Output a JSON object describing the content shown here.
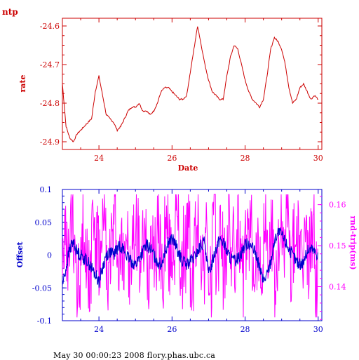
{
  "footer_text": "May 30 00:00:23 2008 flory.phas.ubc.ca",
  "colors": {
    "top": "#cc0000",
    "offset": "#0000cc",
    "roundtrip": "#ff00ff"
  },
  "chart_data": [
    {
      "type": "line",
      "title": "ntp",
      "xlabel": "Date",
      "ylabel": "rate",
      "xlim": [
        23,
        30.1
      ],
      "ylim": [
        -24.92,
        -24.58
      ],
      "xticks": [
        24,
        26,
        28,
        30
      ],
      "xtick_labels": [
        "24",
        "26",
        "28",
        "30"
      ],
      "yticks": [
        -24.6,
        -24.7,
        -24.8,
        -24.9
      ],
      "ytick_labels": [
        "-24.6",
        "-24.7",
        "-24.8",
        "-24.9"
      ],
      "grid": false,
      "series": [
        {
          "color": "#cc0000",
          "x": [
            23.0,
            23.1,
            23.2,
            23.3,
            23.4,
            23.5,
            23.6,
            23.7,
            23.8,
            23.9,
            24.0,
            24.1,
            24.2,
            24.3,
            24.4,
            24.5,
            24.6,
            24.7,
            24.8,
            24.9,
            25.0,
            25.1,
            25.2,
            25.3,
            25.4,
            25.5,
            25.6,
            25.7,
            25.8,
            25.9,
            26.0,
            26.1,
            26.2,
            26.3,
            26.4,
            26.5,
            26.6,
            26.7,
            26.8,
            26.9,
            27.0,
            27.1,
            27.2,
            27.3,
            27.4,
            27.5,
            27.6,
            27.7,
            27.8,
            27.9,
            28.0,
            28.1,
            28.2,
            28.3,
            28.4,
            28.5,
            28.6,
            28.7,
            28.8,
            28.9,
            29.0,
            29.1,
            29.2,
            29.3,
            29.4,
            29.5,
            29.6,
            29.7,
            29.8,
            29.9,
            30.0
          ],
          "y": [
            -24.75,
            -24.86,
            -24.89,
            -24.9,
            -24.88,
            -24.87,
            -24.86,
            -24.85,
            -24.84,
            -24.77,
            -24.73,
            -24.78,
            -24.83,
            -24.84,
            -24.85,
            -24.87,
            -24.86,
            -24.84,
            -24.82,
            -24.81,
            -24.81,
            -24.8,
            -24.82,
            -24.82,
            -24.83,
            -24.82,
            -24.8,
            -24.77,
            -24.76,
            -24.76,
            -24.77,
            -24.78,
            -24.79,
            -24.79,
            -24.78,
            -24.72,
            -24.66,
            -24.6,
            -24.65,
            -24.7,
            -24.74,
            -24.77,
            -24.78,
            -24.79,
            -24.79,
            -24.73,
            -24.68,
            -24.65,
            -24.66,
            -24.7,
            -24.74,
            -24.77,
            -24.79,
            -24.8,
            -24.81,
            -24.79,
            -24.73,
            -24.66,
            -24.63,
            -24.64,
            -24.66,
            -24.7,
            -24.76,
            -24.8,
            -24.79,
            -24.76,
            -24.75,
            -24.77,
            -24.79,
            -24.78,
            -24.79
          ]
        }
      ]
    },
    {
      "type": "line",
      "xlabel": "",
      "ylabel": "Offset",
      "y2label": "rnd-trip(ms)",
      "xlim": [
        23,
        30.1
      ],
      "ylim": [
        -0.1,
        0.1
      ],
      "y2lim": [
        0.1317,
        0.1637
      ],
      "xticks": [
        24,
        26,
        28,
        30
      ],
      "xtick_labels": [
        "24",
        "26",
        "28",
        "30"
      ],
      "yticks": [
        0.1,
        0.05,
        0,
        -0.05,
        -0.1
      ],
      "ytick_labels": [
        "0.1",
        "0.05",
        "0",
        "-0.05",
        "-0.1"
      ],
      "y2ticks": [
        0.16,
        0.15,
        0.14
      ],
      "y2tick_labels": [
        "0.16",
        "0.15",
        "0.14"
      ],
      "grid": false,
      "series": [
        {
          "color": "#0000cc",
          "axis": "left",
          "x": [
            23.0,
            23.1,
            23.2,
            23.3,
            23.4,
            23.5,
            23.6,
            23.7,
            23.8,
            23.9,
            24.0,
            24.1,
            24.2,
            24.3,
            24.4,
            24.5,
            24.6,
            24.7,
            24.8,
            24.9,
            25.0,
            25.1,
            25.2,
            25.3,
            25.4,
            25.5,
            25.6,
            25.7,
            25.8,
            25.9,
            26.0,
            26.1,
            26.2,
            26.3,
            26.4,
            26.5,
            26.6,
            26.7,
            26.8,
            26.9,
            27.0,
            27.1,
            27.2,
            27.3,
            27.4,
            27.5,
            27.6,
            27.7,
            27.8,
            27.9,
            28.0,
            28.1,
            28.2,
            28.3,
            28.4,
            28.5,
            28.6,
            28.7,
            28.8,
            28.9,
            29.0,
            29.1,
            29.2,
            29.3,
            29.4,
            29.5,
            29.6,
            29.7,
            29.8,
            29.9,
            30.0
          ],
          "y": [
            -0.045,
            -0.02,
            0.01,
            0.02,
            0.005,
            0.0,
            -0.005,
            -0.01,
            -0.02,
            -0.03,
            -0.04,
            -0.02,
            0.0,
            0.005,
            0.0,
            0.01,
            0.015,
            0.005,
            -0.005,
            -0.01,
            -0.015,
            -0.005,
            0.005,
            0.015,
            0.01,
            0.0,
            -0.01,
            -0.015,
            0.005,
            0.02,
            0.025,
            0.015,
            0.0,
            -0.01,
            -0.015,
            -0.01,
            -0.005,
            0.005,
            0.015,
            0.02,
            -0.03,
            -0.01,
            0.01,
            0.025,
            0.02,
            0.005,
            -0.005,
            -0.01,
            -0.005,
            0.005,
            0.015,
            0.02,
            0.01,
            0.0,
            -0.02,
            -0.04,
            -0.03,
            -0.01,
            0.02,
            0.035,
            0.03,
            0.02,
            0.01,
            0.0,
            -0.01,
            -0.015,
            -0.01,
            0.005,
            0.01,
            0.005,
            0.0
          ]
        },
        {
          "color": "#ff00ff",
          "axis": "right",
          "x": [
            23.0,
            23.1,
            23.2,
            23.3,
            23.4,
            23.5,
            23.6,
            23.7,
            23.8,
            23.9,
            24.0,
            24.1,
            24.2,
            24.3,
            24.4,
            24.5,
            24.6,
            24.7,
            24.8,
            24.9,
            25.0,
            25.1,
            25.2,
            25.3,
            25.4,
            25.5,
            25.6,
            25.7,
            25.8,
            25.9,
            26.0,
            26.1,
            26.2,
            26.3,
            26.4,
            26.5,
            26.6,
            26.7,
            26.8,
            26.9,
            27.0,
            27.1,
            27.2,
            27.3,
            27.4,
            27.5,
            27.6,
            27.7,
            27.8,
            27.9,
            28.0,
            28.1,
            28.2,
            28.3,
            28.4,
            28.5,
            28.6,
            28.7,
            28.8,
            28.9,
            29.0,
            29.1,
            29.2,
            29.3,
            29.4,
            29.5,
            29.6,
            29.7,
            29.8,
            29.9,
            30.0
          ],
          "y": [
            0.152,
            0.142,
            0.157,
            0.148,
            0.135,
            0.158,
            0.146,
            0.14,
            0.16,
            0.15,
            0.143,
            0.156,
            0.137,
            0.152,
            0.159,
            0.141,
            0.149,
            0.155,
            0.136,
            0.151,
            0.157,
            0.144,
            0.15,
            0.139,
            0.158,
            0.147,
            0.153,
            0.138,
            0.156,
            0.145,
            0.151,
            0.16,
            0.142,
            0.148,
            0.155,
            0.136,
            0.152,
            0.158,
            0.143,
            0.15,
            0.133,
            0.157,
            0.146,
            0.154,
            0.139,
            0.159,
            0.148,
            0.144,
            0.156,
            0.137,
            0.151,
            0.158,
            0.145,
            0.15,
            0.14,
            0.157,
            0.147,
            0.153,
            0.138,
            0.156,
            0.146,
            0.161,
            0.143,
            0.149,
            0.155,
            0.139,
            0.152,
            0.145,
            0.157,
            0.136,
            0.15
          ]
        }
      ]
    }
  ]
}
